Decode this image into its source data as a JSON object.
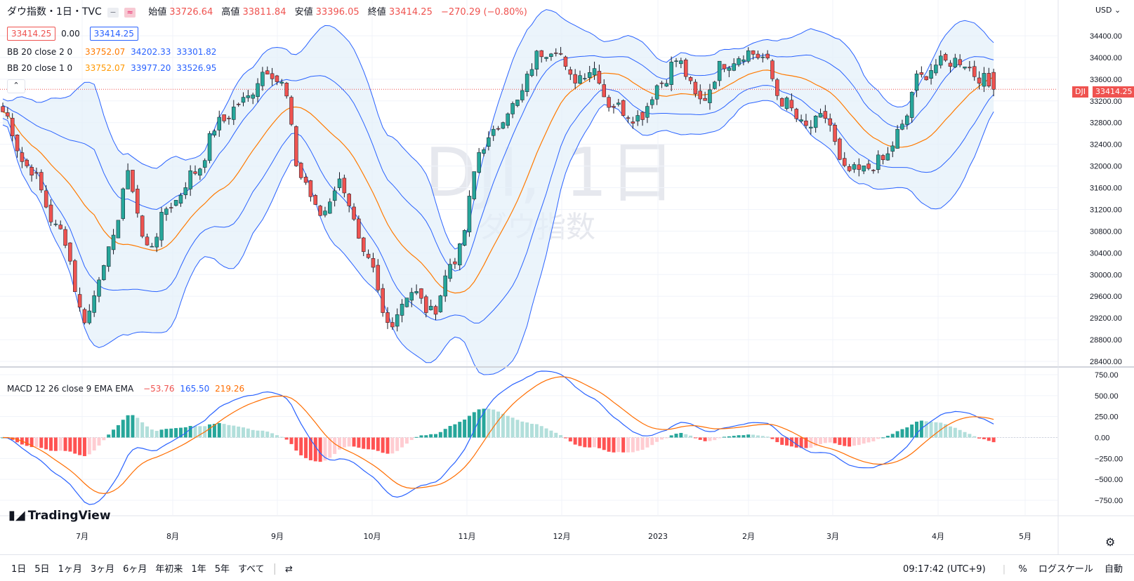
{
  "header": {
    "symbol_title": "ダウ指数・1日・TVC",
    "ohlc": [
      {
        "label": "始値",
        "value": "33726.64"
      },
      {
        "label": "高値",
        "value": "33811.84"
      },
      {
        "label": "安値",
        "value": "33396.05"
      },
      {
        "label": "終値",
        "value": "33414.25"
      }
    ],
    "change": "−270.29 (−0.80%)",
    "bid": "33414.25",
    "spread": "0.00",
    "ask": "33414.25"
  },
  "indicators": {
    "bb1": {
      "label": "BB 20 close 2 0",
      "basis": "33752.07",
      "upper": "34202.33",
      "lower": "33301.82"
    },
    "bb2": {
      "label": "BB 20 close 1 0",
      "basis": "33752.07",
      "upper": "33977.20",
      "lower": "33526.95"
    },
    "macd": {
      "label": "MACD 12 26 close 9 EMA EMA",
      "hist": "−53.76",
      "macd": "165.50",
      "signal": "219.26"
    }
  },
  "watermark": {
    "ticker": "DJI, 1日",
    "name": "ダウ指数"
  },
  "currency": "USD",
  "last_price_tag": {
    "symbol": "DJI",
    "value": "33414.25"
  },
  "timeframes": [
    "1日",
    "5日",
    "1ヶ月",
    "3ヶ月",
    "6ヶ月",
    "年初来",
    "1年",
    "5年",
    "すべて"
  ],
  "clock": "09:17:42 (UTC+9)",
  "percent_label": "%",
  "log_label": "ログスケール",
  "auto_label": "自動",
  "logo": "TradingView",
  "colors": {
    "up": "#26a69a",
    "down": "#ef5350",
    "basis": "#ff7a00",
    "band": "#2962ff",
    "macd": "#2962ff",
    "signal": "#ff6d00"
  },
  "chart_data": [
    {
      "type": "candlestick",
      "title": "ダウ指数・1日・TVC",
      "x_labels": [
        "7月",
        "8月",
        "9月",
        "10月",
        "11月",
        "12月",
        "2023",
        "2月",
        "3月",
        "4月",
        "5月"
      ],
      "y_ticks": [
        28400,
        28800,
        29200,
        29600,
        30000,
        30400,
        30800,
        31200,
        31600,
        32000,
        32400,
        32800,
        33200,
        33600,
        34000,
        34400
      ],
      "ylim": [
        28350,
        34850
      ],
      "price_points": [
        [
          0,
          33000
        ],
        [
          5,
          32000
        ],
        [
          12,
          30800
        ],
        [
          17,
          29200
        ],
        [
          22,
          30400
        ],
        [
          26,
          31800
        ],
        [
          30,
          30500
        ],
        [
          35,
          31300
        ],
        [
          40,
          31900
        ],
        [
          45,
          32800
        ],
        [
          50,
          33200
        ],
        [
          55,
          33800
        ],
        [
          58,
          33500
        ],
        [
          62,
          31800
        ],
        [
          66,
          31100
        ],
        [
          70,
          31700
        ],
        [
          76,
          30200
        ],
        [
          80,
          29100
        ],
        [
          85,
          29700
        ],
        [
          89,
          29300
        ],
        [
          94,
          30300
        ],
        [
          100,
          32400
        ],
        [
          106,
          33100
        ],
        [
          112,
          34100
        ],
        [
          115,
          34200
        ],
        [
          118,
          33600
        ],
        [
          123,
          33800
        ],
        [
          126,
          33150
        ],
        [
          132,
          32900
        ],
        [
          137,
          33550
        ],
        [
          140,
          33950
        ],
        [
          145,
          33200
        ],
        [
          150,
          33900
        ],
        [
          155,
          34100
        ],
        [
          158,
          34000
        ],
        [
          162,
          33200
        ],
        [
          167,
          32700
        ],
        [
          171,
          32900
        ],
        [
          175,
          31900
        ],
        [
          178,
          31900
        ],
        [
          183,
          32100
        ],
        [
          187,
          32700
        ],
        [
          190,
          33600
        ],
        [
          195,
          33900
        ],
        [
          199,
          33950
        ],
        [
          203,
          33650
        ],
        [
          206,
          33410
        ]
      ],
      "bollinger_2sd": {
        "upper_latest": 34202.33,
        "basis_latest": 33752.07,
        "lower_latest": 33301.82
      },
      "bollinger_1sd": {
        "upper_latest": 33977.2,
        "basis_latest": 33752.07,
        "lower_latest": 33526.95
      }
    },
    {
      "type": "bar",
      "title": "MACD 12 26 close 9 EMA EMA",
      "y_ticks": [
        -750,
        -500,
        -250,
        0,
        250,
        500,
        750
      ],
      "ylim": [
        -900,
        830
      ],
      "latest": {
        "macd": 165.5,
        "signal": 219.26,
        "hist": -53.76
      }
    }
  ]
}
